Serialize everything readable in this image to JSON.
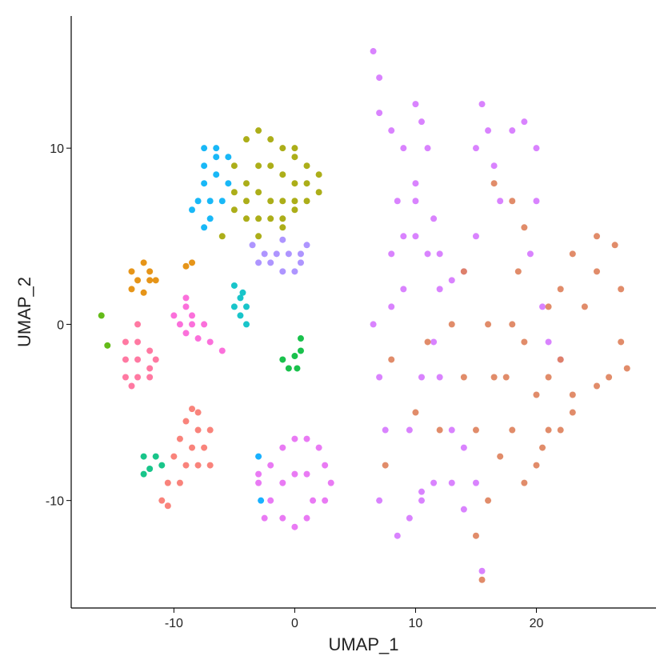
{
  "chart_data": {
    "type": "scatter",
    "x_label": "UMAP_1",
    "y_label": "UMAP_2",
    "xlim": [
      -18.5,
      29.9
    ],
    "ylim": [
      -16.1,
      17.5
    ],
    "xticks": [
      -10,
      0,
      10,
      20
    ],
    "yticks": [
      -10,
      0,
      10
    ],
    "grid": false,
    "series": [
      {
        "color": "#A3A500",
        "x": [
          -4,
          -3,
          -2,
          -1,
          0,
          1,
          2,
          -5,
          -4,
          -3,
          -2,
          -1,
          0,
          1,
          -4,
          -3,
          -2,
          -1,
          0,
          1,
          -4,
          -3,
          -2,
          -1,
          0,
          -5,
          -6,
          -3,
          -1,
          2,
          -5,
          0
        ],
        "y": [
          10.5,
          11,
          10.5,
          10,
          9.5,
          9,
          8.5,
          9,
          8,
          9,
          9,
          8.5,
          8,
          8,
          7,
          7.5,
          7,
          7,
          7,
          7,
          6,
          6,
          6,
          6,
          6.5,
          6.5,
          5,
          5,
          5.5,
          7.5,
          7.5,
          10
        ]
      },
      {
        "color": "#00B0F6",
        "x": [
          -7.5,
          -6.5,
          -5.5,
          -7.5,
          -6.5,
          -5.5,
          -7.5,
          -8,
          -7,
          -6,
          -8.5,
          -7,
          -7.5,
          -6.5
        ],
        "y": [
          10,
          10,
          9.5,
          9,
          8.5,
          8,
          8,
          7,
          7,
          7,
          6.5,
          6,
          5.5,
          9.5
        ]
      },
      {
        "color": "#A58AFF",
        "x": [
          -3.5,
          -2.5,
          -1.5,
          -0.5,
          0.5,
          1,
          -2,
          -1,
          0,
          -3,
          0.5,
          -1
        ],
        "y": [
          4.5,
          4,
          4,
          4,
          4,
          4.5,
          3.5,
          3,
          3,
          3.5,
          3.5,
          4.8
        ]
      },
      {
        "color": "#E38900",
        "x": [
          -13.5,
          -12.5,
          -12,
          -13,
          -12,
          -13.5,
          -12.5,
          -11.5,
          -9,
          -8.5
        ],
        "y": [
          3,
          3.5,
          3,
          2.5,
          2.5,
          2,
          1.8,
          2.5,
          3.3,
          3.5
        ]
      },
      {
        "color": "#FB61D7",
        "x": [
          -9,
          -8.5,
          -9.5,
          -8.5,
          -7.5,
          -9,
          -8,
          -7,
          -9,
          -10,
          -6
        ],
        "y": [
          1,
          0.5,
          0,
          0,
          0,
          -0.5,
          -0.8,
          -1,
          1.5,
          0.5,
          -1.5
        ]
      },
      {
        "color": "#FF6A98",
        "x": [
          -14,
          -13,
          -12,
          -14,
          -13,
          -12,
          -14,
          -13,
          -12,
          -13.5,
          -13,
          -11.5
        ],
        "y": [
          -1,
          -1,
          -1.5,
          -2,
          -2,
          -2.5,
          -3,
          -3,
          -3,
          -3.5,
          0,
          -2
        ]
      },
      {
        "color": "#F8766D",
        "x": [
          -8.5,
          -8,
          -9,
          -8,
          -7,
          -9.5,
          -8.5,
          -7.5,
          -10,
          -9,
          -8,
          -10.5,
          -9.5,
          -11,
          -10.5,
          -7
        ],
        "y": [
          -4.8,
          -5,
          -5.5,
          -6,
          -6,
          -6.5,
          -7,
          -7,
          -7.5,
          -8,
          -8,
          -9,
          -9,
          -10,
          -10.3,
          -8
        ]
      },
      {
        "color": "#00BF7D",
        "x": [
          -12.5,
          -11.5,
          -12,
          -11,
          -12.5
        ],
        "y": [
          -7.5,
          -7.5,
          -8.2,
          -8,
          -8.5
        ]
      },
      {
        "color": "#00BFC4",
        "x": [
          -5,
          -4.5,
          -4,
          -5,
          -4.5,
          -4,
          -4.3
        ],
        "y": [
          2.2,
          1.5,
          1,
          1,
          0.5,
          0,
          1.8
        ]
      },
      {
        "color": "#00BA38",
        "x": [
          -1,
          0,
          0.5,
          0.5,
          -0.5,
          0.2
        ],
        "y": [
          -2,
          -1.8,
          -1.5,
          -0.8,
          -2.5,
          -2.5
        ]
      },
      {
        "color": "#E76BF3",
        "x": [
          -2,
          -1,
          0,
          1,
          2,
          2.5,
          3,
          -3,
          -2,
          -1,
          0,
          1,
          1.5,
          2.5,
          -2.5,
          0,
          1,
          -1,
          -3
        ],
        "y": [
          -8,
          -7,
          -6.5,
          -6.5,
          -7,
          -8,
          -9,
          -9,
          -10,
          -11,
          -11.5,
          -11,
          -10,
          -10,
          -11,
          -8.5,
          -8.5,
          -9,
          -8.5
        ]
      },
      {
        "color": "#00A9FF",
        "x": [
          -3,
          -2.8
        ],
        "y": [
          -7.5,
          -10
        ]
      },
      {
        "color": "#53B400",
        "x": [
          -16,
          -15.5
        ],
        "y": [
          0.5,
          -1.2
        ]
      },
      {
        "color": "#D575FE",
        "x": [
          6.5,
          7,
          7,
          8,
          9,
          8.5,
          9,
          8,
          9,
          8,
          6.5,
          7,
          7.5,
          7,
          8.5,
          9.5,
          10.5,
          9.5,
          10.5,
          11.5,
          12,
          11,
          10,
          10,
          10,
          11,
          10.5,
          10,
          11.5,
          12,
          13,
          14,
          15,
          15,
          15.5,
          16,
          16.5,
          17,
          18,
          19,
          20,
          20,
          19.5,
          20.5,
          21,
          22,
          12,
          13,
          14,
          15,
          15.5,
          14,
          13,
          11.5,
          10.5
        ],
        "y": [
          15.5,
          14,
          12,
          11,
          10,
          7,
          5,
          4,
          2,
          1,
          0,
          -3,
          -6,
          -10,
          -12,
          -11,
          -10,
          -6,
          -3,
          -1,
          2,
          4,
          5,
          7,
          8,
          10,
          11.5,
          12.5,
          6,
          4,
          2.5,
          3,
          5,
          10,
          12.5,
          11,
          9,
          7,
          11,
          11.5,
          10,
          7,
          4,
          1,
          -1,
          -2,
          -3,
          -6,
          -7,
          -9,
          -14,
          -10.5,
          -9,
          -9,
          -9.5
        ]
      },
      {
        "color": "#DE7F5A",
        "x": [
          16.5,
          18,
          19,
          18.5,
          18,
          17.5,
          18,
          19,
          20,
          21,
          20,
          19,
          21,
          22,
          23,
          25,
          26.5,
          27,
          27,
          27.5,
          26,
          25,
          23,
          22,
          20.5,
          17,
          16,
          15.5,
          15,
          15,
          14,
          13,
          14,
          16,
          16.5,
          22,
          24,
          25,
          23,
          21,
          12,
          10,
          11,
          8,
          7.5
        ],
        "y": [
          8,
          7,
          5.5,
          3,
          0,
          -3,
          -6,
          -9,
          -8,
          -6,
          -4,
          -1,
          1,
          2,
          4,
          5,
          4.5,
          2,
          -1,
          -2.5,
          -3,
          -3.5,
          -5,
          -6,
          -7,
          -7.5,
          -10,
          -14.5,
          -12,
          -6,
          -3,
          0,
          3,
          0,
          -3,
          -2,
          1,
          3,
          -4,
          -3,
          -6,
          -5,
          -1,
          -2,
          -8
        ]
      }
    ]
  }
}
